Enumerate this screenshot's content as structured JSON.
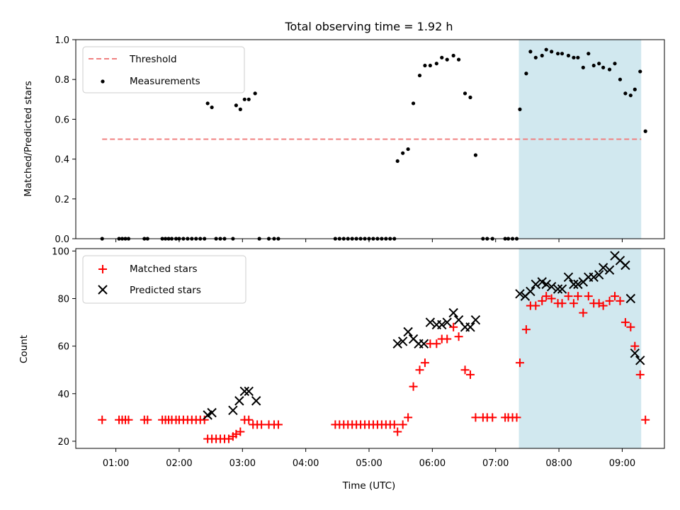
{
  "chart_data": [
    {
      "type": "scatter",
      "title": "Total observing time = 1.92 h",
      "xlabel": "",
      "ylabel": "Matched/Predicted stars",
      "xlim": [
        "00:22",
        "09:40"
      ],
      "ylim": [
        0,
        1
      ],
      "yticks": [
        "0.0",
        "0.2",
        "0.4",
        "0.6",
        "0.8",
        "1.0"
      ],
      "legend_position": "upper left",
      "highlight_span": [
        "07:22",
        "09:18"
      ],
      "highlight_color": "#d1e8ef",
      "threshold": {
        "name": "Threshold",
        "value": 0.5,
        "x_range": [
          "00:47",
          "09:18"
        ],
        "color": "#f08080",
        "style": "dashed"
      },
      "series": [
        {
          "name": "Measurements",
          "color": "#000000",
          "marker": "dot",
          "points": [
            [
              "00:47",
              0.0
            ],
            [
              "01:03",
              0.0
            ],
            [
              "01:06",
              0.0
            ],
            [
              "01:09",
              0.0
            ],
            [
              "01:12",
              0.0
            ],
            [
              "01:27",
              0.0
            ],
            [
              "01:30",
              0.0
            ],
            [
              "01:44",
              0.0
            ],
            [
              "01:47",
              0.0
            ],
            [
              "01:50",
              0.0
            ],
            [
              "01:53",
              0.0
            ],
            [
              "01:57",
              0.0
            ],
            [
              "02:00",
              0.0
            ],
            [
              "02:04",
              0.0
            ],
            [
              "02:08",
              0.0
            ],
            [
              "02:12",
              0.0
            ],
            [
              "02:16",
              0.0
            ],
            [
              "02:20",
              0.0
            ],
            [
              "02:24",
              0.0
            ],
            [
              "02:27",
              0.68
            ],
            [
              "02:31",
              0.66
            ],
            [
              "02:35",
              0.0
            ],
            [
              "02:39",
              0.0
            ],
            [
              "02:43",
              0.0
            ],
            [
              "02:51",
              0.0
            ],
            [
              "02:54",
              0.67
            ],
            [
              "02:58",
              0.65
            ],
            [
              "03:02",
              0.7
            ],
            [
              "03:06",
              0.7
            ],
            [
              "03:12",
              0.73
            ],
            [
              "03:16",
              0.0
            ],
            [
              "03:25",
              0.0
            ],
            [
              "03:30",
              0.0
            ],
            [
              "03:34",
              0.0
            ],
            [
              "04:28",
              0.0
            ],
            [
              "04:32",
              0.0
            ],
            [
              "04:36",
              0.0
            ],
            [
              "04:40",
              0.0
            ],
            [
              "04:44",
              0.0
            ],
            [
              "04:48",
              0.0
            ],
            [
              "04:52",
              0.0
            ],
            [
              "04:56",
              0.0
            ],
            [
              "05:00",
              0.0
            ],
            [
              "05:04",
              0.0
            ],
            [
              "05:08",
              0.0
            ],
            [
              "05:12",
              0.0
            ],
            [
              "05:16",
              0.0
            ],
            [
              "05:20",
              0.0
            ],
            [
              "05:24",
              0.0
            ],
            [
              "05:27",
              0.39
            ],
            [
              "05:32",
              0.43
            ],
            [
              "05:37",
              0.45
            ],
            [
              "05:42",
              0.68
            ],
            [
              "05:48",
              0.82
            ],
            [
              "05:53",
              0.87
            ],
            [
              "05:58",
              0.87
            ],
            [
              "06:04",
              0.88
            ],
            [
              "06:09",
              0.91
            ],
            [
              "06:14",
              0.9
            ],
            [
              "06:20",
              0.92
            ],
            [
              "06:25",
              0.9
            ],
            [
              "06:31",
              0.73
            ],
            [
              "06:36",
              0.71
            ],
            [
              "06:41",
              0.42
            ],
            [
              "06:48",
              0.0
            ],
            [
              "06:52",
              0.0
            ],
            [
              "06:57",
              0.0
            ],
            [
              "07:09",
              0.0
            ],
            [
              "07:12",
              0.0
            ],
            [
              "07:16",
              0.0
            ],
            [
              "07:20",
              0.0
            ],
            [
              "07:23",
              0.65
            ],
            [
              "07:29",
              0.83
            ],
            [
              "07:33",
              0.94
            ],
            [
              "07:38",
              0.91
            ],
            [
              "07:44",
              0.92
            ],
            [
              "07:48",
              0.95
            ],
            [
              "07:53",
              0.94
            ],
            [
              "07:59",
              0.93
            ],
            [
              "08:03",
              0.93
            ],
            [
              "08:09",
              0.92
            ],
            [
              "08:14",
              0.91
            ],
            [
              "08:18",
              0.91
            ],
            [
              "08:23",
              0.86
            ],
            [
              "08:28",
              0.93
            ],
            [
              "08:33",
              0.87
            ],
            [
              "08:38",
              0.88
            ],
            [
              "08:42",
              0.86
            ],
            [
              "08:48",
              0.85
            ],
            [
              "08:53",
              0.88
            ],
            [
              "08:58",
              0.8
            ],
            [
              "09:03",
              0.73
            ],
            [
              "09:08",
              0.72
            ],
            [
              "09:12",
              0.75
            ],
            [
              "09:17",
              0.84
            ],
            [
              "09:22",
              0.54
            ]
          ]
        }
      ]
    },
    {
      "type": "scatter",
      "title": "",
      "xlabel": "Time (UTC)",
      "ylabel": "Count",
      "xlim": [
        "00:22",
        "09:40"
      ],
      "ylim": [
        17,
        101
      ],
      "xticks": [
        "01:00",
        "02:00",
        "03:00",
        "04:00",
        "05:00",
        "06:00",
        "07:00",
        "08:00",
        "09:00"
      ],
      "yticks": [
        "20",
        "40",
        "60",
        "80",
        "100"
      ],
      "legend_position": "upper left",
      "highlight_span": [
        "07:22",
        "09:18"
      ],
      "highlight_color": "#d1e8ef",
      "series": [
        {
          "name": "Matched stars",
          "color": "#ff0000",
          "marker": "plus",
          "points": [
            [
              "00:47",
              29
            ],
            [
              "01:03",
              29
            ],
            [
              "01:06",
              29
            ],
            [
              "01:09",
              29
            ],
            [
              "01:12",
              29
            ],
            [
              "01:27",
              29
            ],
            [
              "01:30",
              29
            ],
            [
              "01:44",
              29
            ],
            [
              "01:47",
              29
            ],
            [
              "01:50",
              29
            ],
            [
              "01:53",
              29
            ],
            [
              "01:57",
              29
            ],
            [
              "02:00",
              29
            ],
            [
              "02:04",
              29
            ],
            [
              "02:08",
              29
            ],
            [
              "02:12",
              29
            ],
            [
              "02:16",
              29
            ],
            [
              "02:20",
              29
            ],
            [
              "02:24",
              29
            ],
            [
              "02:27",
              21
            ],
            [
              "02:31",
              21
            ],
            [
              "02:35",
              21
            ],
            [
              "02:39",
              21
            ],
            [
              "02:43",
              21
            ],
            [
              "02:47",
              21
            ],
            [
              "02:51",
              22
            ],
            [
              "02:54",
              23
            ],
            [
              "02:58",
              24
            ],
            [
              "03:02",
              29
            ],
            [
              "03:06",
              29
            ],
            [
              "03:10",
              27
            ],
            [
              "03:14",
              27
            ],
            [
              "03:18",
              27
            ],
            [
              "03:25",
              27
            ],
            [
              "03:30",
              27
            ],
            [
              "03:34",
              27
            ],
            [
              "04:28",
              27
            ],
            [
              "04:32",
              27
            ],
            [
              "04:36",
              27
            ],
            [
              "04:40",
              27
            ],
            [
              "04:44",
              27
            ],
            [
              "04:48",
              27
            ],
            [
              "04:52",
              27
            ],
            [
              "04:56",
              27
            ],
            [
              "05:00",
              27
            ],
            [
              "05:04",
              27
            ],
            [
              "05:08",
              27
            ],
            [
              "05:12",
              27
            ],
            [
              "05:16",
              27
            ],
            [
              "05:20",
              27
            ],
            [
              "05:24",
              27
            ],
            [
              "05:27",
              24
            ],
            [
              "05:32",
              27
            ],
            [
              "05:37",
              30
            ],
            [
              "05:42",
              43
            ],
            [
              "05:48",
              50
            ],
            [
              "05:53",
              53
            ],
            [
              "05:58",
              61
            ],
            [
              "06:04",
              61
            ],
            [
              "06:09",
              63
            ],
            [
              "06:14",
              63
            ],
            [
              "06:20",
              68
            ],
            [
              "06:25",
              64
            ],
            [
              "06:31",
              50
            ],
            [
              "06:36",
              48
            ],
            [
              "06:41",
              30
            ],
            [
              "06:48",
              30
            ],
            [
              "06:52",
              30
            ],
            [
              "06:57",
              30
            ],
            [
              "07:09",
              30
            ],
            [
              "07:12",
              30
            ],
            [
              "07:16",
              30
            ],
            [
              "07:20",
              30
            ],
            [
              "07:23",
              53
            ],
            [
              "07:29",
              67
            ],
            [
              "07:33",
              77
            ],
            [
              "07:38",
              77
            ],
            [
              "07:44",
              79
            ],
            [
              "07:48",
              81
            ],
            [
              "07:53",
              80
            ],
            [
              "07:59",
              78
            ],
            [
              "08:03",
              78
            ],
            [
              "08:09",
              81
            ],
            [
              "08:14",
              78
            ],
            [
              "08:18",
              81
            ],
            [
              "08:23",
              74
            ],
            [
              "08:28",
              81
            ],
            [
              "08:33",
              78
            ],
            [
              "08:38",
              78
            ],
            [
              "08:42",
              77
            ],
            [
              "08:48",
              79
            ],
            [
              "08:53",
              81
            ],
            [
              "08:58",
              79
            ],
            [
              "09:03",
              70
            ],
            [
              "09:08",
              68
            ],
            [
              "09:12",
              60
            ],
            [
              "09:17",
              48
            ],
            [
              "09:22",
              29
            ]
          ]
        },
        {
          "name": "Predicted stars",
          "color": "#000000",
          "marker": "x",
          "points": [
            [
              "02:27",
              31
            ],
            [
              "02:31",
              32
            ],
            [
              "02:51",
              33
            ],
            [
              "02:57",
              37
            ],
            [
              "03:02",
              41
            ],
            [
              "03:06",
              41
            ],
            [
              "03:13",
              37
            ],
            [
              "05:27",
              61
            ],
            [
              "05:32",
              62
            ],
            [
              "05:37",
              66
            ],
            [
              "05:42",
              63
            ],
            [
              "05:47",
              61
            ],
            [
              "05:52",
              61
            ],
            [
              "05:58",
              70
            ],
            [
              "06:04",
              69
            ],
            [
              "06:09",
              69
            ],
            [
              "06:14",
              70
            ],
            [
              "06:20",
              74
            ],
            [
              "06:25",
              71
            ],
            [
              "06:31",
              68
            ],
            [
              "06:36",
              68
            ],
            [
              "06:41",
              71
            ],
            [
              "07:23",
              82
            ],
            [
              "07:28",
              81
            ],
            [
              "07:33",
              83
            ],
            [
              "07:38",
              86
            ],
            [
              "07:44",
              87
            ],
            [
              "07:48",
              86
            ],
            [
              "07:53",
              85
            ],
            [
              "07:59",
              84
            ],
            [
              "08:03",
              84
            ],
            [
              "08:09",
              89
            ],
            [
              "08:14",
              86
            ],
            [
              "08:18",
              86
            ],
            [
              "08:23",
              87
            ],
            [
              "08:28",
              89
            ],
            [
              "08:33",
              89
            ],
            [
              "08:38",
              90
            ],
            [
              "08:42",
              93
            ],
            [
              "08:48",
              92
            ],
            [
              "08:53",
              98
            ],
            [
              "08:58",
              96
            ],
            [
              "09:03",
              94
            ],
            [
              "09:08",
              80
            ],
            [
              "09:12",
              57
            ],
            [
              "09:17",
              54
            ]
          ]
        }
      ]
    }
  ]
}
